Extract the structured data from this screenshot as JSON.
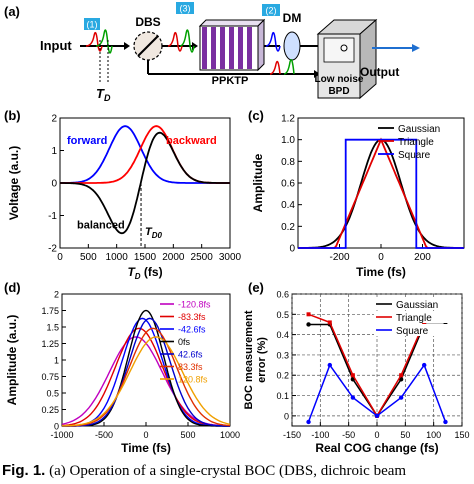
{
  "panel_a": {
    "label": "(a)",
    "input_label": "Input",
    "output_label": "Output",
    "dbs_label": "DBS",
    "dm_label": "DM",
    "ppktp_label": "PPKTP",
    "bpd_label_1": "Low noise",
    "bpd_label_2": "BPD",
    "td_main": "T",
    "td_sub": "D",
    "badges": [
      "(1)",
      "(3)",
      "(2)"
    ]
  },
  "chart_data": [
    {
      "panel": "(b)",
      "type": "line",
      "xlabel_main": "T",
      "xlabel_sub": "D",
      "xlabel_unit": " (fs)",
      "ylabel": "Voltage (a.u.)",
      "xlim": [
        0,
        3000
      ],
      "ylim": [
        -2,
        2
      ],
      "xticks": [
        0,
        500,
        1000,
        1500,
        2000,
        2500,
        3000
      ],
      "yticks": [
        -2,
        -1,
        0,
        1,
        2
      ],
      "grid": false,
      "series": [
        {
          "name": "forward",
          "color": "#0000ff",
          "center": 1150,
          "width": 280,
          "amp": 1.75
        },
        {
          "name": "backward",
          "color": "#ff0000",
          "center": 1700,
          "width": 280,
          "amp": 1.75
        },
        {
          "name": "balanced",
          "color": "#000000",
          "center_neg": 1150,
          "center_pos": 1700,
          "width": 280,
          "amp": 1.75
        }
      ],
      "annotation_main": "T",
      "annotation_sub": "D0",
      "annotation_x": 1430
    },
    {
      "panel": "(c)",
      "type": "line",
      "xlabel": "Time (fs)",
      "ylabel": "Amplitude",
      "xlim": [
        -400,
        400
      ],
      "ylim": [
        0,
        1.2
      ],
      "xticks": [
        -200,
        0,
        200
      ],
      "yticks": [
        0,
        0.2,
        0.4,
        0.6,
        0.8,
        1.0,
        1.2
      ],
      "ytick_labels": [
        "0",
        "0.2",
        "0.4",
        "0.6",
        "0.8",
        "1.0",
        "1.2"
      ],
      "grid": false,
      "legend_position": "top-right",
      "series": [
        {
          "name": "Gaussian",
          "color": "#000000"
        },
        {
          "name": "Triangle",
          "color": "#e00000"
        },
        {
          "name": "Square",
          "color": "#0000ff"
        }
      ]
    },
    {
      "panel": "(d)",
      "type": "line",
      "xlabel": "Time (fs)",
      "ylabel": "Amplitude (a.u.)",
      "xlim": [
        -1000,
        1000
      ],
      "ylim": [
        0,
        2
      ],
      "xticks": [
        -1000,
        -500,
        0,
        500,
        1000
      ],
      "yticks": [
        0,
        0.25,
        0.5,
        0.75,
        1,
        1.25,
        1.5,
        1.75,
        2
      ],
      "ytick_labels": [
        "0",
        "0.25",
        "0.5",
        "0.75",
        "1",
        "1.25",
        "1.5",
        "1.75",
        "2"
      ],
      "grid": false,
      "legend_position": "top-right",
      "series": [
        {
          "name": "-120.8fs",
          "color": "#c000c0",
          "center": -120.8,
          "peak": 1.35
        },
        {
          "name": "-83.3fs",
          "color": "#e00000",
          "center": -83.3,
          "peak": 1.48
        },
        {
          "name": "-42.6fs",
          "color": "#0000ff",
          "center": -42.6,
          "peak": 1.63
        },
        {
          "name": "0fs",
          "color": "#000000",
          "center": 0,
          "peak": 1.75
        },
        {
          "name": "42.6fs",
          "color": "#0000cc",
          "center": 42.6,
          "peak": 1.63
        },
        {
          "name": "83.3fs",
          "color": "#e03000",
          "center": 83.3,
          "peak": 1.48
        },
        {
          "name": "120.8fs",
          "color": "#f0a000",
          "center": 120.8,
          "peak": 1.35
        }
      ]
    },
    {
      "panel": "(e)",
      "type": "line",
      "xlabel": "Real COG change (fs)",
      "ylabel_line1": "BOC measurement",
      "ylabel_line2": "error (%)",
      "xlim": [
        -150,
        150
      ],
      "ylim": [
        -0.05,
        0.6
      ],
      "xticks": [
        -150,
        -100,
        -50,
        0,
        50,
        100,
        150
      ],
      "yticks": [
        0,
        0.1,
        0.2,
        0.3,
        0.4,
        0.5,
        0.6
      ],
      "ytick_labels": [
        "0",
        "0.1",
        "0.2",
        "0.3",
        "0.4",
        "0.5",
        "0.6"
      ],
      "grid": true,
      "legend_position": "top-right",
      "series": [
        {
          "name": "Gaussian",
          "color": "#000000",
          "x": [
            -120.8,
            -83.3,
            -42.6,
            0,
            42.6,
            83.3,
            120.8
          ],
          "y": [
            0.45,
            0.45,
            0.18,
            0,
            0.18,
            0.45,
            0.45
          ]
        },
        {
          "name": "Triangle",
          "color": "#e00000",
          "x": [
            -120.8,
            -83.3,
            -42.6,
            0,
            42.6,
            83.3,
            120.8
          ],
          "y": [
            0.5,
            0.46,
            0.2,
            0,
            0.2,
            0.46,
            0.5
          ]
        },
        {
          "name": "Square",
          "color": "#0000ff",
          "x": [
            -120.8,
            -83.3,
            -42.6,
            0,
            42.6,
            83.3,
            120.8
          ],
          "y": [
            -0.03,
            0.25,
            0.09,
            0,
            0.09,
            0.25,
            -0.03
          ]
        }
      ]
    }
  ],
  "caption": {
    "label": "Fig. 1.",
    "text": "(a) Operation of a single-crystal BOC (DBS, dichroic beam"
  }
}
